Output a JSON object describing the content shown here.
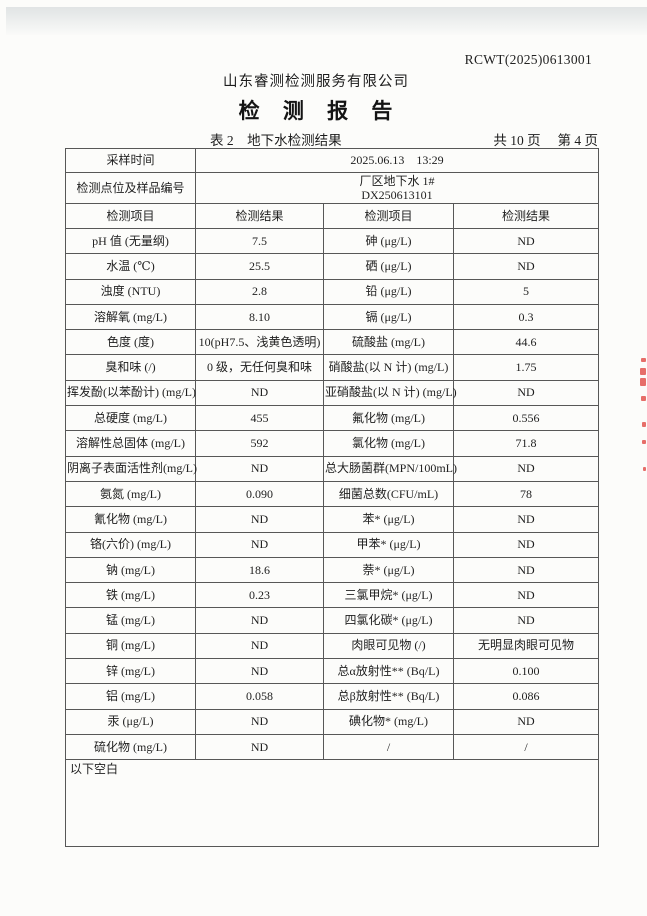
{
  "page": {
    "report_no": "RCWT(2025)0613001",
    "company": "山东睿测检测服务有限公司",
    "title": "检 测 报 告",
    "table_caption": "表 2　地下水检测结果",
    "pagination": "共 10 页　 第 4 页"
  },
  "info": {
    "sampling_time_label": "采样时间",
    "sampling_time_value": "2025.06.13　13:29",
    "location_label": "检测点位及样品编号",
    "location_line1": "厂区地下水 1#",
    "location_line2": "DX250613101"
  },
  "columns": [
    "检测项目",
    "检测结果",
    "检测项目",
    "检测结果"
  ],
  "rows": [
    [
      "pH 值 (无量纲)",
      "7.5",
      "砷 (μg/L)",
      "ND"
    ],
    [
      "水温 (℃)",
      "25.5",
      "硒 (μg/L)",
      "ND"
    ],
    [
      "浊度 (NTU)",
      "2.8",
      "铅 (μg/L)",
      "5"
    ],
    [
      "溶解氧 (mg/L)",
      "8.10",
      "镉 (μg/L)",
      "0.3"
    ],
    [
      "色度 (度)",
      "10(pH7.5、浅黄色透明)",
      "硫酸盐 (mg/L)",
      "44.6"
    ],
    [
      "臭和味 (/)",
      "0 级，无任何臭和味",
      "硝酸盐(以 N 计) (mg/L)",
      "1.75"
    ],
    [
      "挥发酚(以苯酚计) (mg/L)",
      "ND",
      "亚硝酸盐(以 N 计) (mg/L)",
      "ND"
    ],
    [
      "总硬度 (mg/L)",
      "455",
      "氟化物 (mg/L)",
      "0.556"
    ],
    [
      "溶解性总固体 (mg/L)",
      "592",
      "氯化物 (mg/L)",
      "71.8"
    ],
    [
      "阴离子表面活性剂(mg/L)",
      "ND",
      "总大肠菌群(MPN/100mL)",
      "ND"
    ],
    [
      "氨氮 (mg/L)",
      "0.090",
      "细菌总数(CFU/mL)",
      "78"
    ],
    [
      "氰化物 (mg/L)",
      "ND",
      "苯* (μg/L)",
      "ND"
    ],
    [
      "铬(六价) (mg/L)",
      "ND",
      "甲苯* (μg/L)",
      "ND"
    ],
    [
      "钠 (mg/L)",
      "18.6",
      "萘* (μg/L)",
      "ND"
    ],
    [
      "铁 (mg/L)",
      "0.23",
      "三氯甲烷* (μg/L)",
      "ND"
    ],
    [
      "锰 (mg/L)",
      "ND",
      "四氯化碳* (μg/L)",
      "ND"
    ],
    [
      "铜 (mg/L)",
      "ND",
      "肉眼可见物 (/)",
      "无明显肉眼可见物"
    ],
    [
      "锌 (mg/L)",
      "ND",
      "总α放射性** (Bq/L)",
      "0.100"
    ],
    [
      "铝 (mg/L)",
      "0.058",
      "总β放射性** (Bq/L)",
      "0.086"
    ],
    [
      "汞 (μg/L)",
      "ND",
      "碘化物* (mg/L)",
      "ND"
    ],
    [
      "硫化物 (mg/L)",
      "ND",
      "/",
      "/"
    ]
  ],
  "footer_note": "以下空白",
  "colors": {
    "stamp_red": "#e04a45",
    "border_gray": "#575757",
    "paper": "#fcfcfa"
  }
}
